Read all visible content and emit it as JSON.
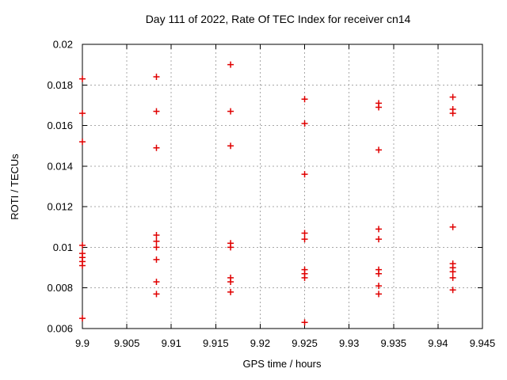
{
  "chart_data": {
    "type": "scatter",
    "title": "Day 111 of 2022, Rate Of TEC Index for receiver cn14",
    "xlabel": "GPS time / hours",
    "ylabel": "ROTI / TECUs",
    "xlim": [
      9.9,
      9.945
    ],
    "ylim": [
      0.006,
      0.02
    ],
    "x_ticks": [
      9.9,
      9.905,
      9.91,
      9.915,
      9.92,
      9.925,
      9.93,
      9.935,
      9.94,
      9.945
    ],
    "x_tick_labels": [
      "9.9",
      "9.905",
      "9.91",
      "9.915",
      "9.92",
      "9.925",
      "9.93",
      "9.935",
      "9.94",
      "9.945"
    ],
    "y_ticks": [
      0.006,
      0.008,
      0.01,
      0.012,
      0.014,
      0.016,
      0.018,
      0.02
    ],
    "y_tick_labels": [
      "0.006",
      "0.008",
      "0.01",
      "0.012",
      "0.014",
      "0.016",
      "0.018",
      "0.02"
    ],
    "grid": true,
    "legend": "none",
    "marker": {
      "shape": "plus",
      "size": 8,
      "color": "#e00000"
    },
    "series": [
      {
        "name": "ROTI",
        "groups": [
          {
            "x": 9.9,
            "y_values": [
              0.0183,
              0.0166,
              0.0152,
              0.0101,
              0.0097,
              0.0095,
              0.0093,
              0.0091,
              0.0065
            ]
          },
          {
            "x": 9.90833,
            "y_values": [
              0.0184,
              0.0167,
              0.0149,
              0.0106,
              0.0103,
              0.01,
              0.0094,
              0.0083,
              0.0077
            ]
          },
          {
            "x": 9.91667,
            "y_values": [
              0.019,
              0.0167,
              0.015,
              0.0102,
              0.01,
              0.0085,
              0.0083,
              0.0078
            ]
          },
          {
            "x": 9.925,
            "y_values": [
              0.0173,
              0.0161,
              0.0136,
              0.0107,
              0.0104,
              0.0089,
              0.0087,
              0.0085,
              0.0063
            ]
          },
          {
            "x": 9.93333,
            "y_values": [
              0.0171,
              0.0169,
              0.0148,
              0.0109,
              0.0104,
              0.0089,
              0.0087,
              0.0081,
              0.0077
            ]
          },
          {
            "x": 9.94167,
            "y_values": [
              0.0174,
              0.0168,
              0.0166,
              0.011,
              0.0092,
              0.009,
              0.0088,
              0.0085,
              0.0079
            ]
          }
        ]
      }
    ],
    "colors": {
      "marker": "#e00000",
      "grid": "#a8a8a8",
      "axis": "#000000",
      "background": "#ffffff",
      "text": "#000000"
    }
  }
}
